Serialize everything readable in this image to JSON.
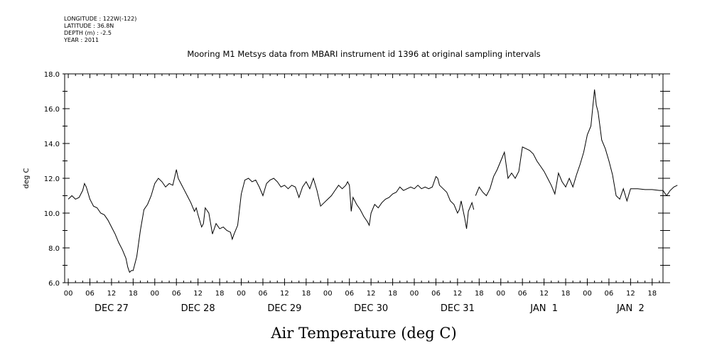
{
  "meta": {
    "longitude": "LONGITUDE : 122W(-122)",
    "latitude": "LATITUDE : 36.8N",
    "depth": "DEPTH (m) : -2.5",
    "year": "YEAR : 2011"
  },
  "chart_data": {
    "type": "line",
    "title": "Mooring M1 Metsys data from MBARI instrument id 1396 at original sampling intervals",
    "xlabel": "Air Temperature (deg C)",
    "ylabel": "deg C",
    "ylim": [
      6.0,
      18.0
    ],
    "yticks": [
      "6.0",
      "8.0",
      "10.0",
      "12.0",
      "14.0",
      "16.0",
      "18.0"
    ],
    "xlim_hours": [
      -1,
      165
    ],
    "hour_tick_labels": [
      "00",
      "06",
      "12",
      "18",
      "00",
      "06",
      "12",
      "18",
      "00",
      "06",
      "12",
      "18",
      "00",
      "06",
      "12",
      "18",
      "00",
      "06",
      "12",
      "18",
      "00",
      "06",
      "12",
      "18",
      "00",
      "06",
      "12",
      "18"
    ],
    "day_labels": [
      "DEC 27",
      "DEC 28",
      "DEC 29",
      "DEC 30",
      "DEC 31",
      "JAN  1",
      "JAN  2"
    ],
    "grid": false,
    "series": [
      {
        "segments": [
          [
            [
              0,
              10.8
            ],
            [
              1,
              11.0
            ],
            [
              2,
              10.8
            ],
            [
              3,
              10.9
            ],
            [
              4,
              11.3
            ],
            [
              4.5,
              11.7
            ],
            [
              5,
              11.5
            ],
            [
              6,
              10.8
            ],
            [
              7,
              10.4
            ],
            [
              8,
              10.3
            ],
            [
              9,
              10.0
            ],
            [
              10,
              9.9
            ],
            [
              11,
              9.6
            ],
            [
              12,
              9.2
            ],
            [
              13,
              8.8
            ],
            [
              14,
              8.3
            ],
            [
              15,
              7.9
            ],
            [
              16,
              7.4
            ],
            [
              16.5,
              6.9
            ],
            [
              17,
              6.6
            ],
            [
              17.5,
              6.7
            ],
            [
              18,
              6.7
            ],
            [
              19,
              7.5
            ],
            [
              20,
              9.0
            ],
            [
              21,
              10.2
            ],
            [
              22,
              10.5
            ],
            [
              23,
              11.0
            ],
            [
              24,
              11.7
            ],
            [
              25,
              12.0
            ],
            [
              26,
              11.8
            ],
            [
              27,
              11.5
            ],
            [
              28,
              11.7
            ],
            [
              29,
              11.6
            ],
            [
              30,
              12.5
            ],
            [
              30.5,
              12.0
            ],
            [
              31,
              11.8
            ],
            [
              32,
              11.4
            ],
            [
              33,
              11.0
            ],
            [
              34,
              10.6
            ],
            [
              35,
              10.1
            ],
            [
              35.5,
              10.3
            ],
            [
              36,
              9.9
            ],
            [
              37,
              9.2
            ],
            [
              37.5,
              9.4
            ],
            [
              38,
              10.3
            ],
            [
              39,
              10.0
            ],
            [
              40,
              8.8
            ],
            [
              41,
              9.4
            ],
            [
              42,
              9.1
            ],
            [
              43,
              9.2
            ],
            [
              44,
              9.0
            ],
            [
              45,
              8.9
            ],
            [
              45.5,
              8.5
            ],
            [
              46,
              8.8
            ],
            [
              47,
              9.3
            ],
            [
              48,
              11.1
            ],
            [
              49,
              11.9
            ],
            [
              50,
              12.0
            ],
            [
              51,
              11.8
            ],
            [
              52,
              11.9
            ],
            [
              53,
              11.5
            ],
            [
              54,
              11.0
            ],
            [
              55,
              11.7
            ],
            [
              56,
              11.9
            ],
            [
              57,
              12.0
            ],
            [
              58,
              11.8
            ],
            [
              59,
              11.5
            ],
            [
              60,
              11.6
            ],
            [
              61,
              11.4
            ],
            [
              62,
              11.6
            ],
            [
              63,
              11.5
            ],
            [
              64,
              10.9
            ],
            [
              65,
              11.5
            ],
            [
              66,
              11.8
            ],
            [
              67,
              11.4
            ],
            [
              68,
              12.0
            ],
            [
              69,
              11.3
            ],
            [
              70,
              10.4
            ],
            [
              71,
              10.6
            ],
            [
              72,
              10.8
            ],
            [
              73,
              11.0
            ],
            [
              74,
              11.3
            ],
            [
              75,
              11.6
            ],
            [
              76,
              11.4
            ],
            [
              77,
              11.6
            ],
            [
              77.5,
              11.8
            ],
            [
              78,
              11.6
            ],
            [
              78.5,
              10.1
            ],
            [
              79,
              10.9
            ],
            [
              80,
              10.5
            ],
            [
              81,
              10.2
            ],
            [
              82,
              9.8
            ],
            [
              83,
              9.5
            ],
            [
              83.5,
              9.3
            ],
            [
              84,
              10.0
            ],
            [
              85,
              10.5
            ],
            [
              86,
              10.3
            ],
            [
              87,
              10.6
            ],
            [
              88,
              10.8
            ],
            [
              89,
              10.9
            ],
            [
              90,
              11.1
            ],
            [
              91,
              11.2
            ],
            [
              92,
              11.5
            ],
            [
              93,
              11.3
            ],
            [
              94,
              11.4
            ],
            [
              95,
              11.5
            ],
            [
              96,
              11.4
            ],
            [
              97,
              11.6
            ],
            [
              98,
              11.4
            ],
            [
              99,
              11.5
            ],
            [
              100,
              11.4
            ],
            [
              101,
              11.5
            ],
            [
              102,
              12.1
            ],
            [
              102.5,
              12.0
            ],
            [
              103,
              11.6
            ],
            [
              104,
              11.4
            ],
            [
              105,
              11.2
            ],
            [
              106,
              10.7
            ],
            [
              107,
              10.5
            ],
            [
              108,
              10.0
            ],
            [
              108.5,
              10.2
            ],
            [
              109,
              10.7
            ],
            [
              110,
              9.7
            ],
            [
              110.5,
              9.1
            ],
            [
              111,
              10.1
            ],
            [
              112,
              10.6
            ],
            [
              112.5,
              10.2
            ]
          ],
          [
            [
              113,
              11.0
            ],
            [
              114,
              11.5
            ],
            [
              115,
              11.2
            ],
            [
              116,
              11.0
            ],
            [
              117,
              11.4
            ],
            [
              118,
              12.1
            ],
            [
              119,
              12.5
            ],
            [
              120,
              13.0
            ],
            [
              121,
              13.5
            ],
            [
              122,
              12.0
            ],
            [
              123,
              12.3
            ],
            [
              124,
              12.0
            ],
            [
              125,
              12.4
            ],
            [
              126,
              13.8
            ],
            [
              127,
              13.7
            ],
            [
              128,
              13.6
            ],
            [
              129,
              13.4
            ],
            [
              130,
              13.0
            ],
            [
              131,
              12.7
            ],
            [
              132,
              12.4
            ],
            [
              133,
              12.0
            ],
            [
              134,
              11.6
            ],
            [
              135,
              11.1
            ],
            [
              136,
              12.3
            ],
            [
              137,
              11.8
            ],
            [
              138,
              11.5
            ],
            [
              139,
              12.0
            ],
            [
              140,
              11.5
            ],
            [
              141,
              12.2
            ],
            [
              142,
              12.8
            ],
            [
              143,
              13.5
            ],
            [
              144,
              14.5
            ],
            [
              145,
              15.0
            ],
            [
              146,
              17.1
            ],
            [
              146.5,
              16.2
            ],
            [
              147,
              15.8
            ],
            [
              148,
              14.2
            ],
            [
              149,
              13.7
            ],
            [
              150,
              13.0
            ],
            [
              151,
              12.2
            ],
            [
              152,
              11.0
            ],
            [
              153,
              10.8
            ],
            [
              154,
              11.4
            ],
            [
              155,
              10.7
            ],
            [
              156,
              11.4
            ],
            [
              158,
              11.4
            ],
            [
              160,
              11.35
            ],
            [
              162,
              11.35
            ],
            [
              164,
              11.3
            ],
            [
              165,
              11.3
            ],
            [
              166,
              11.0
            ],
            [
              167,
              11.3
            ],
            [
              168,
              11.5
            ],
            [
              169,
              11.6
            ]
          ]
        ]
      }
    ]
  }
}
